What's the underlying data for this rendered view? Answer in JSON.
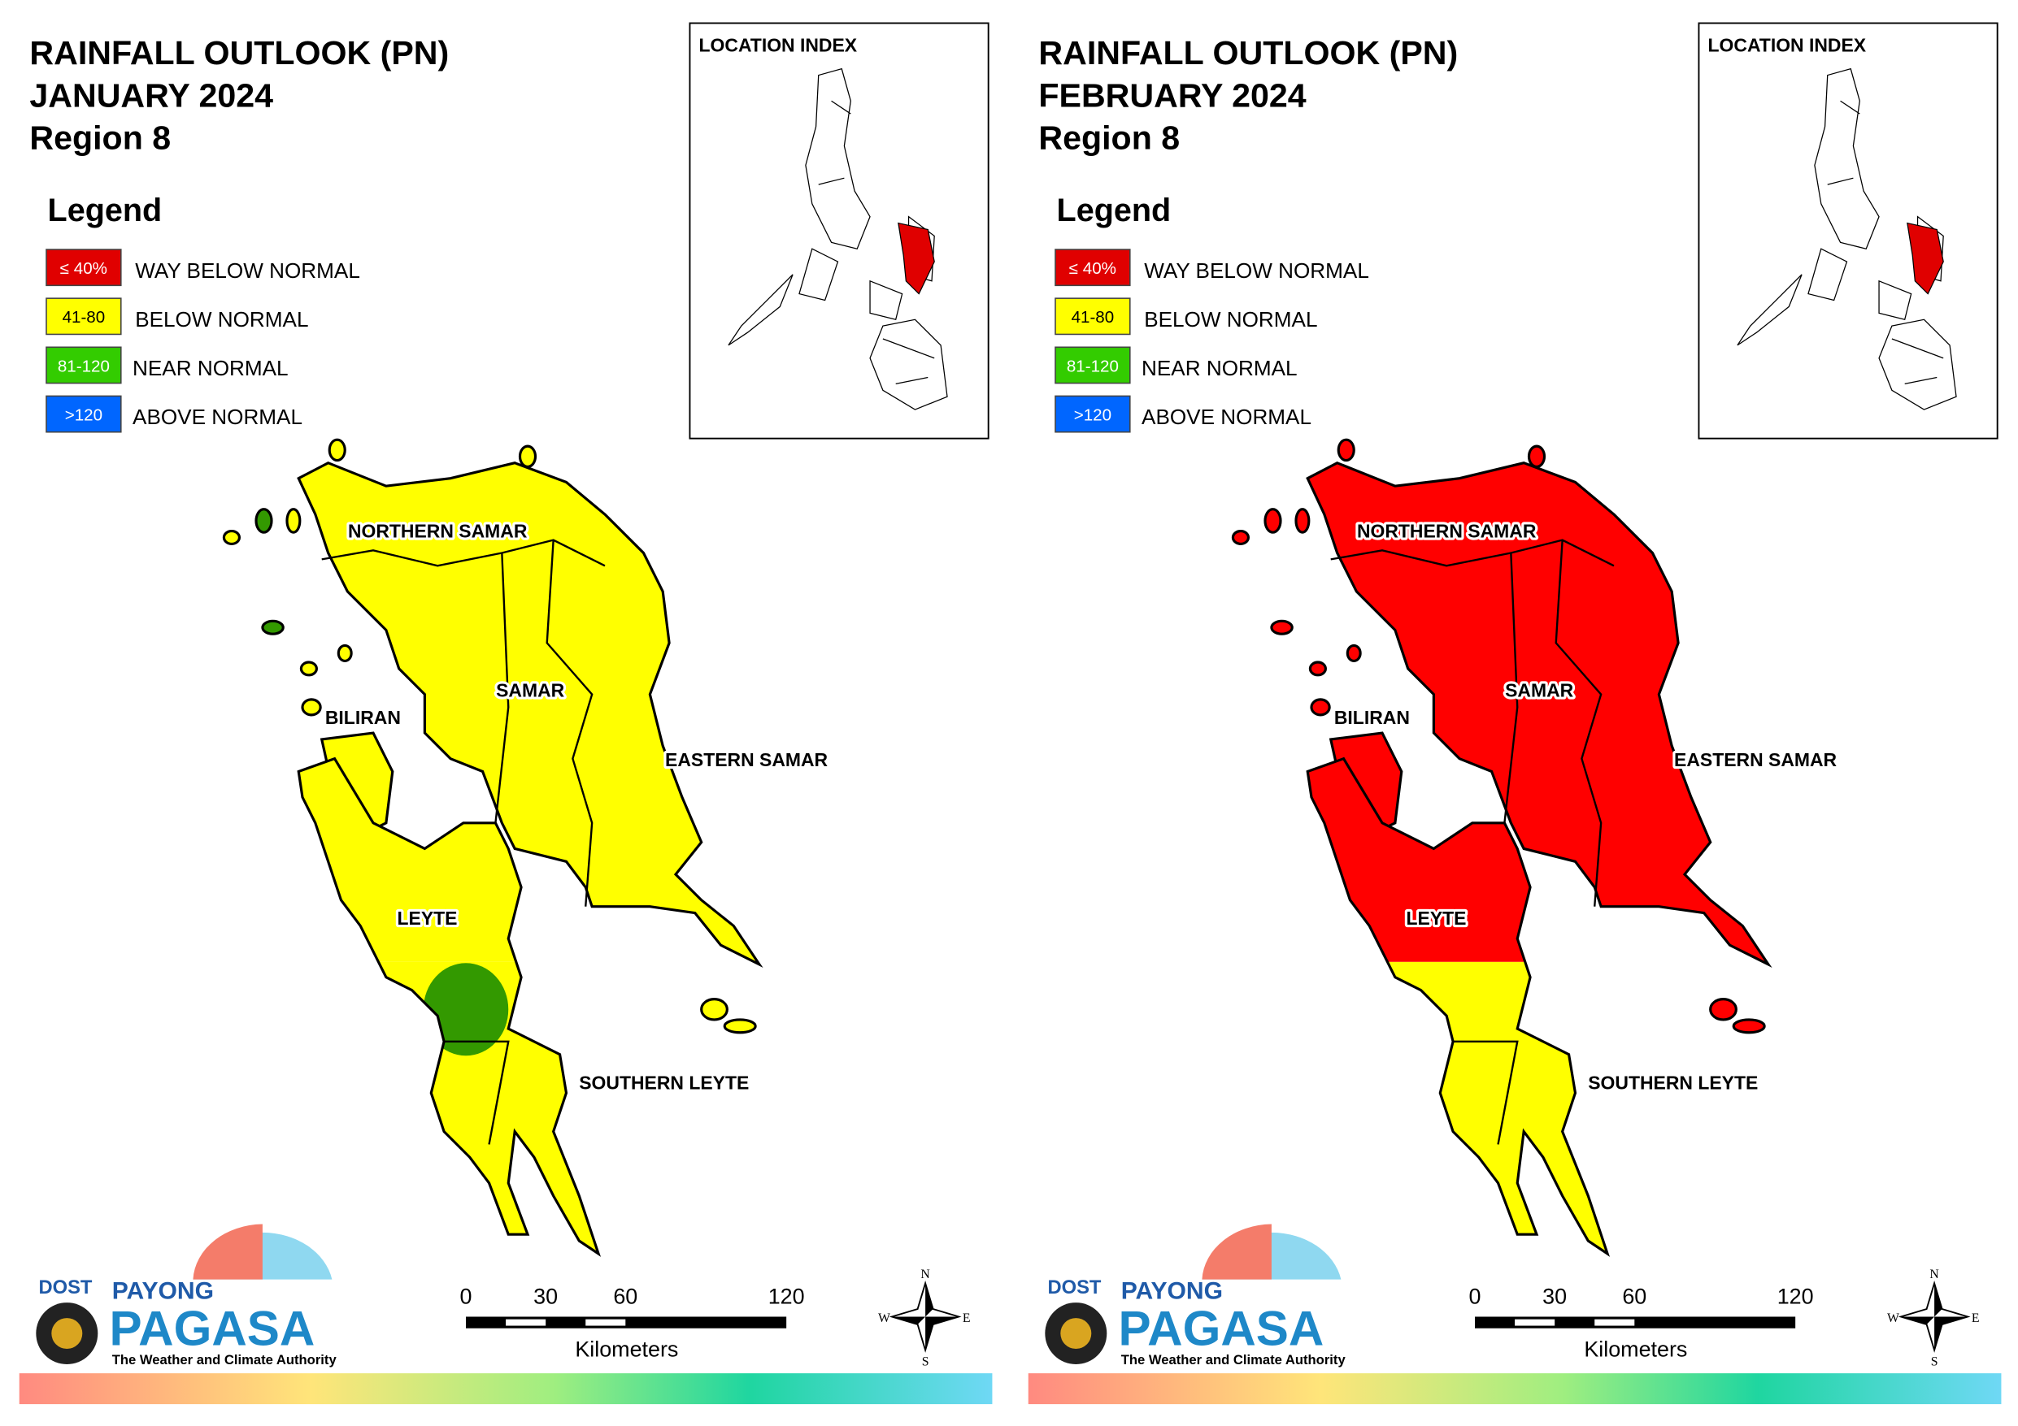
{
  "panels": [
    {
      "title_lines": [
        "RAINFALL OUTLOOK (PN)",
        "JANUARY 2024",
        "Region 8"
      ],
      "legend_title": "Legend",
      "legend": [
        {
          "key": "≤ 40%",
          "label": "WAY BELOW NORMAL",
          "color": "#e00000"
        },
        {
          "key": "41-80",
          "label": "BELOW NORMAL",
          "color": "#ffff00"
        },
        {
          "key": "81-120",
          "label": "NEAR NORMAL",
          "color": "#33cc00"
        },
        {
          "key": ">120",
          "label": "ABOVE NORMAL",
          "color": "#0066ff"
        }
      ],
      "location_index": "LOCATION INDEX",
      "regions": [
        "NORTHERN SAMAR",
        "SAMAR",
        "BILIRAN",
        "EASTERN SAMAR",
        "LEYTE",
        "SOUTHERN LEYTE"
      ],
      "fill_north": "#ffff00",
      "fill_south": "#ffff00",
      "patch_color": "#339900",
      "scale": {
        "ticks": [
          "0",
          "30",
          "60",
          "120"
        ],
        "unit": "Kilometers"
      },
      "compass": [
        "N",
        "E",
        "S",
        "W"
      ],
      "logo": {
        "agency": "DOST",
        "top": "PAYONG",
        "name": "PAGASA",
        "tagline": "The Weather and Climate Authority"
      }
    },
    {
      "title_lines": [
        "RAINFALL OUTLOOK (PN)",
        "FEBRUARY 2024",
        "Region 8"
      ],
      "legend_title": "Legend",
      "legend": [
        {
          "key": "≤ 40%",
          "label": "WAY BELOW NORMAL",
          "color": "#e00000"
        },
        {
          "key": "41-80",
          "label": "BELOW NORMAL",
          "color": "#ffff00"
        },
        {
          "key": "81-120",
          "label": "NEAR NORMAL",
          "color": "#33cc00"
        },
        {
          "key": ">120",
          "label": "ABOVE NORMAL",
          "color": "#0066ff"
        }
      ],
      "location_index": "LOCATION INDEX",
      "regions": [
        "NORTHERN SAMAR",
        "SAMAR",
        "BILIRAN",
        "EASTERN SAMAR",
        "LEYTE",
        "SOUTHERN LEYTE"
      ],
      "fill_north": "#ff0000",
      "fill_south": "#ffff00",
      "scale": {
        "ticks": [
          "0",
          "30",
          "60",
          "120"
        ],
        "unit": "Kilometers"
      },
      "compass": [
        "N",
        "E",
        "S",
        "W"
      ],
      "logo": {
        "agency": "DOST",
        "top": "PAYONG",
        "name": "PAGASA",
        "tagline": "The Weather and Climate Authority"
      }
    }
  ]
}
